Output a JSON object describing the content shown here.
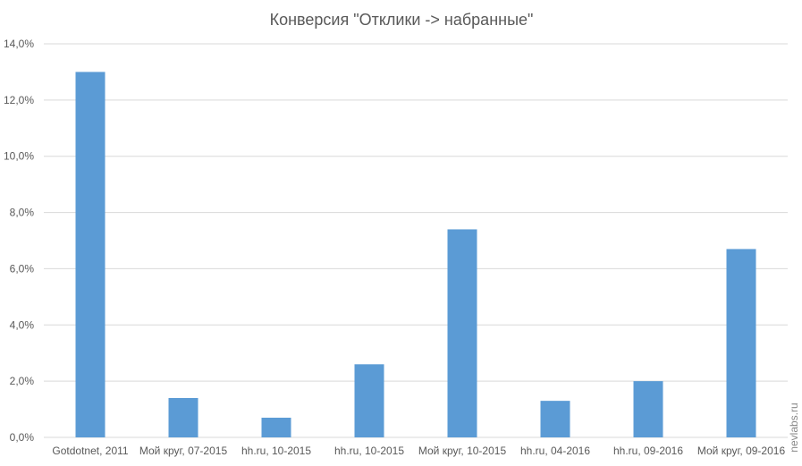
{
  "chart_data": {
    "type": "bar",
    "title": "Конверсия \"Отклики -> набранные\"",
    "xlabel": "",
    "ylabel": "",
    "categories": [
      "Gotdotnet, 2011",
      "Мой круг, 07-2015",
      "hh.ru, 10-2015",
      "hh.ru, 10-2015",
      "Мой круг, 10-2015",
      "hh.ru, 04-2016",
      "hh.ru, 09-2016",
      "Мой круг, 09-2016"
    ],
    "values": [
      13.0,
      1.4,
      0.7,
      2.6,
      7.4,
      1.3,
      2.0,
      6.7
    ],
    "ylim": [
      0,
      14
    ],
    "y_ticks": [
      "0,0%",
      "2,0%",
      "4,0%",
      "6,0%",
      "8,0%",
      "10,0%",
      "12,0%",
      "14,0%"
    ],
    "grid": true,
    "legend": "none",
    "bar_color": "#5b9bd5",
    "grid_color": "#d9d9d9",
    "text_color": "#595959"
  },
  "watermark": "nevlabs.ru"
}
